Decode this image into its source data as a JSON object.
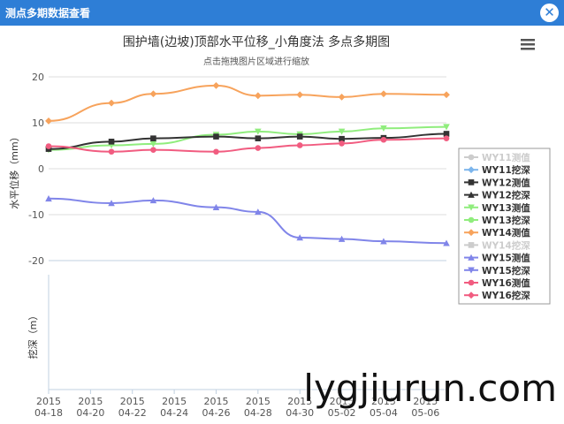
{
  "window": {
    "title": "测点多期数据查看",
    "close_label": "✕"
  },
  "chart_data": {
    "type": "line",
    "title": "围护墙(边坡)顶部水平位移_小角度法 多点多期图",
    "subtitle": "点击拖拽图片区域进行缩放",
    "menu_icon": "hamburger-menu-icon",
    "ylabel_top": "水平位移（mm）",
    "ylabel_bottom": "挖深（m）",
    "ylim": [
      -20,
      20
    ],
    "yticks": [
      "20",
      "10",
      "0",
      "-10",
      "-20"
    ],
    "xlim": [
      "2015-04-18",
      "2015-05-07"
    ],
    "x_ticks": [
      {
        "year": "2015",
        "md": "04-18"
      },
      {
        "year": "2015",
        "md": "04-20"
      },
      {
        "year": "2015",
        "md": "04-22"
      },
      {
        "year": "2015",
        "md": "04-24"
      },
      {
        "year": "2015",
        "md": "04-26"
      },
      {
        "year": "2015",
        "md": "04-28"
      },
      {
        "year": "2015",
        "md": "04-30"
      },
      {
        "year": "2015",
        "md": "05-02"
      },
      {
        "year": "2015",
        "md": "05-04"
      },
      {
        "year": "2015",
        "md": "05-06"
      }
    ],
    "x": [
      "2015-04-18",
      "2015-04-21",
      "2015-04-23",
      "2015-04-26",
      "2015-04-28",
      "2015-04-30",
      "2015-05-02",
      "2015-05-04",
      "2015-05-07"
    ],
    "grid": true,
    "legend_placement": "right",
    "legend": [
      {
        "name": "WY11测值",
        "color": "#c0c0c0",
        "marker": "circle",
        "hidden": true
      },
      {
        "name": "WY11挖深",
        "color": "#7cb5ec",
        "marker": "diamond",
        "hidden": false
      },
      {
        "name": "WY12测值",
        "color": "#333333",
        "marker": "square",
        "hidden": false
      },
      {
        "name": "WY12挖深",
        "color": "#333333",
        "marker": "triangle",
        "hidden": false
      },
      {
        "name": "WY13测值",
        "color": "#90ed7d",
        "marker": "triangle-down",
        "hidden": false
      },
      {
        "name": "WY13挖深",
        "color": "#90ed7d",
        "marker": "circle",
        "hidden": false
      },
      {
        "name": "WY14测值",
        "color": "#f7a35c",
        "marker": "diamond",
        "hidden": false
      },
      {
        "name": "WY14挖深",
        "color": "#c0c0c0",
        "marker": "square",
        "hidden": true
      },
      {
        "name": "WY15测值",
        "color": "#8085e9",
        "marker": "triangle",
        "hidden": false
      },
      {
        "name": "WY15挖深",
        "color": "#8085e9",
        "marker": "triangle-down",
        "hidden": false
      },
      {
        "name": "WY16测值",
        "color": "#f15c80",
        "marker": "circle",
        "hidden": false
      },
      {
        "name": "WY16挖深",
        "color": "#f15c80",
        "marker": "diamond",
        "hidden": false
      }
    ],
    "series": [
      {
        "name": "WY14测值",
        "color": "#f7a35c",
        "marker": "diamond",
        "values": [
          10.4,
          14.3,
          16.3,
          18.1,
          15.9,
          16.1,
          15.6,
          16.3,
          16.1
        ]
      },
      {
        "name": "WY13测值",
        "color": "#90ed7d",
        "marker": "triangle-down",
        "values": [
          4.1,
          5.1,
          5.4,
          7.4,
          8.1,
          7.5,
          8.1,
          8.8,
          9.1
        ]
      },
      {
        "name": "WY12测值",
        "color": "#333333",
        "marker": "square",
        "values": [
          4.3,
          5.9,
          6.6,
          7.0,
          6.6,
          7.0,
          6.5,
          6.7,
          7.6
        ]
      },
      {
        "name": "WY16测值",
        "color": "#f15c80",
        "marker": "circle",
        "values": [
          4.9,
          3.7,
          4.1,
          3.7,
          4.5,
          5.1,
          5.5,
          6.3,
          6.6
        ]
      },
      {
        "name": "WY15测值",
        "color": "#8085e9",
        "marker": "triangle",
        "values": [
          -6.5,
          -7.5,
          -6.9,
          -8.4,
          -9.4,
          -15.0,
          -15.3,
          -15.8,
          -16.2
        ]
      }
    ]
  },
  "watermark": "lygjiurun.com"
}
